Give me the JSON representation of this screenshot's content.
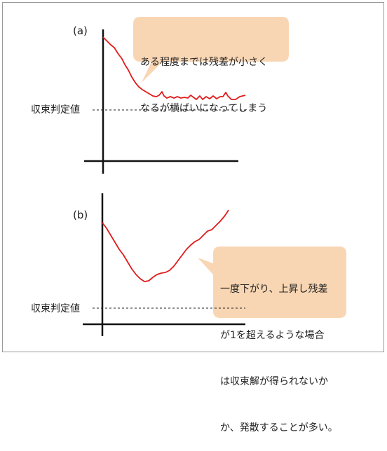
{
  "panels": [
    {
      "label": "(a)",
      "threshold_label": "収束判定値",
      "callout_lines": [
        "ある程度までは残差が小さく",
        "なるが横ばいになってしまう"
      ]
    },
    {
      "label": "(b)",
      "threshold_label": "収束判定値",
      "callout_lines": [
        "一度下がり、上昇し残差",
        "が1を超えるような場合",
        "は収束解が得られないか",
        "か、発散することが多い。"
      ]
    }
  ],
  "colors": {
    "curve": "#e01b1b",
    "callout_fill": "#f9d6b3",
    "axis": "#111111"
  }
}
